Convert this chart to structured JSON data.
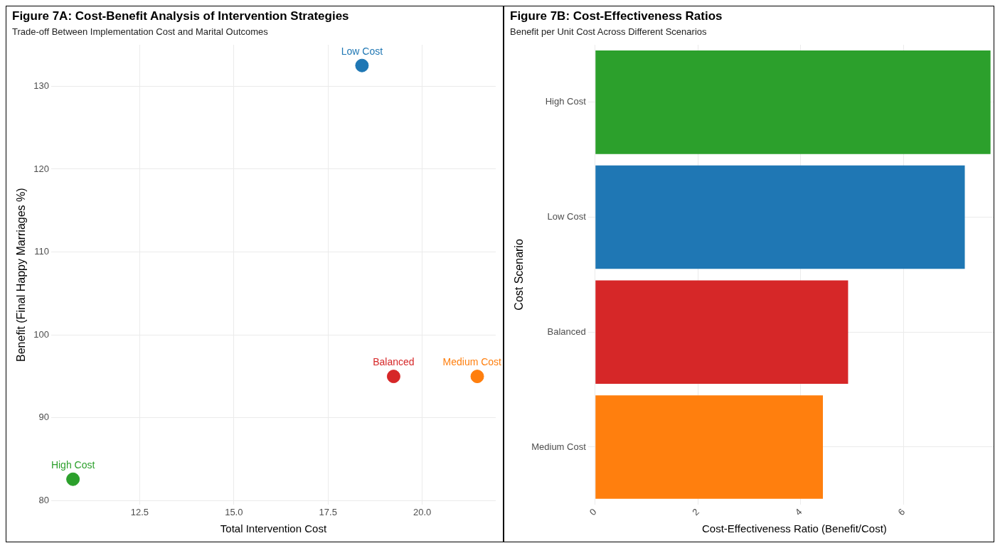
{
  "chart_data": [
    {
      "type": "scatter",
      "title": "Figure 7A: Cost-Benefit Analysis of Intervention Strategies",
      "subtitle": "Trade-off Between Implementation Cost and Marital Outcomes",
      "xlabel": "Total Intervention Cost",
      "ylabel": "Benefit (Final Happy Marriages %)",
      "xlim": [
        10.15,
        21.95
      ],
      "xticks": [
        12.5,
        {
          "value": 15,
          "label": "15.0"
        },
        17.5,
        {
          "value": 20,
          "label": "20.0"
        }
      ],
      "ylim": [
        79.5,
        135
      ],
      "yticks": [
        80,
        90,
        100,
        110,
        120,
        130
      ],
      "grid": true,
      "legend": false,
      "marker": "circle",
      "series": [
        {
          "name": "Low Cost",
          "color": "#1f77b4",
          "x": [
            18.4
          ],
          "values": [
            132.5
          ]
        },
        {
          "name": "Balanced",
          "color": "#d62728",
          "x": [
            19.24
          ],
          "values": [
            95.0
          ]
        },
        {
          "name": "Medium Cost",
          "color": "#ff7f0e",
          "x": [
            21.46
          ],
          "values": [
            95.0
          ]
        },
        {
          "name": "High Cost",
          "color": "#2ca02c",
          "x": [
            10.73
          ],
          "values": [
            82.6
          ]
        }
      ]
    },
    {
      "type": "bar",
      "orientation": "horizontal",
      "title": "Figure 7B: Cost-Effectiveness Ratios",
      "subtitle": "Benefit per Unit Cost Across Different Scenarios",
      "xlabel": "Cost-Effectiveness Ratio (Benefit/Cost)",
      "ylabel": "Cost Scenario",
      "categories": [
        "High Cost",
        "Low Cost",
        "Balanced",
        "Medium Cost"
      ],
      "values": [
        7.69,
        7.19,
        4.92,
        4.43
      ],
      "colors": [
        "#2ca02c",
        "#1f77b4",
        "#d62728",
        "#ff7f0e"
      ],
      "xlim": [
        0,
        7.75
      ],
      "xticks": [
        0,
        2,
        4,
        6
      ],
      "grid": true,
      "legend": false
    }
  ]
}
